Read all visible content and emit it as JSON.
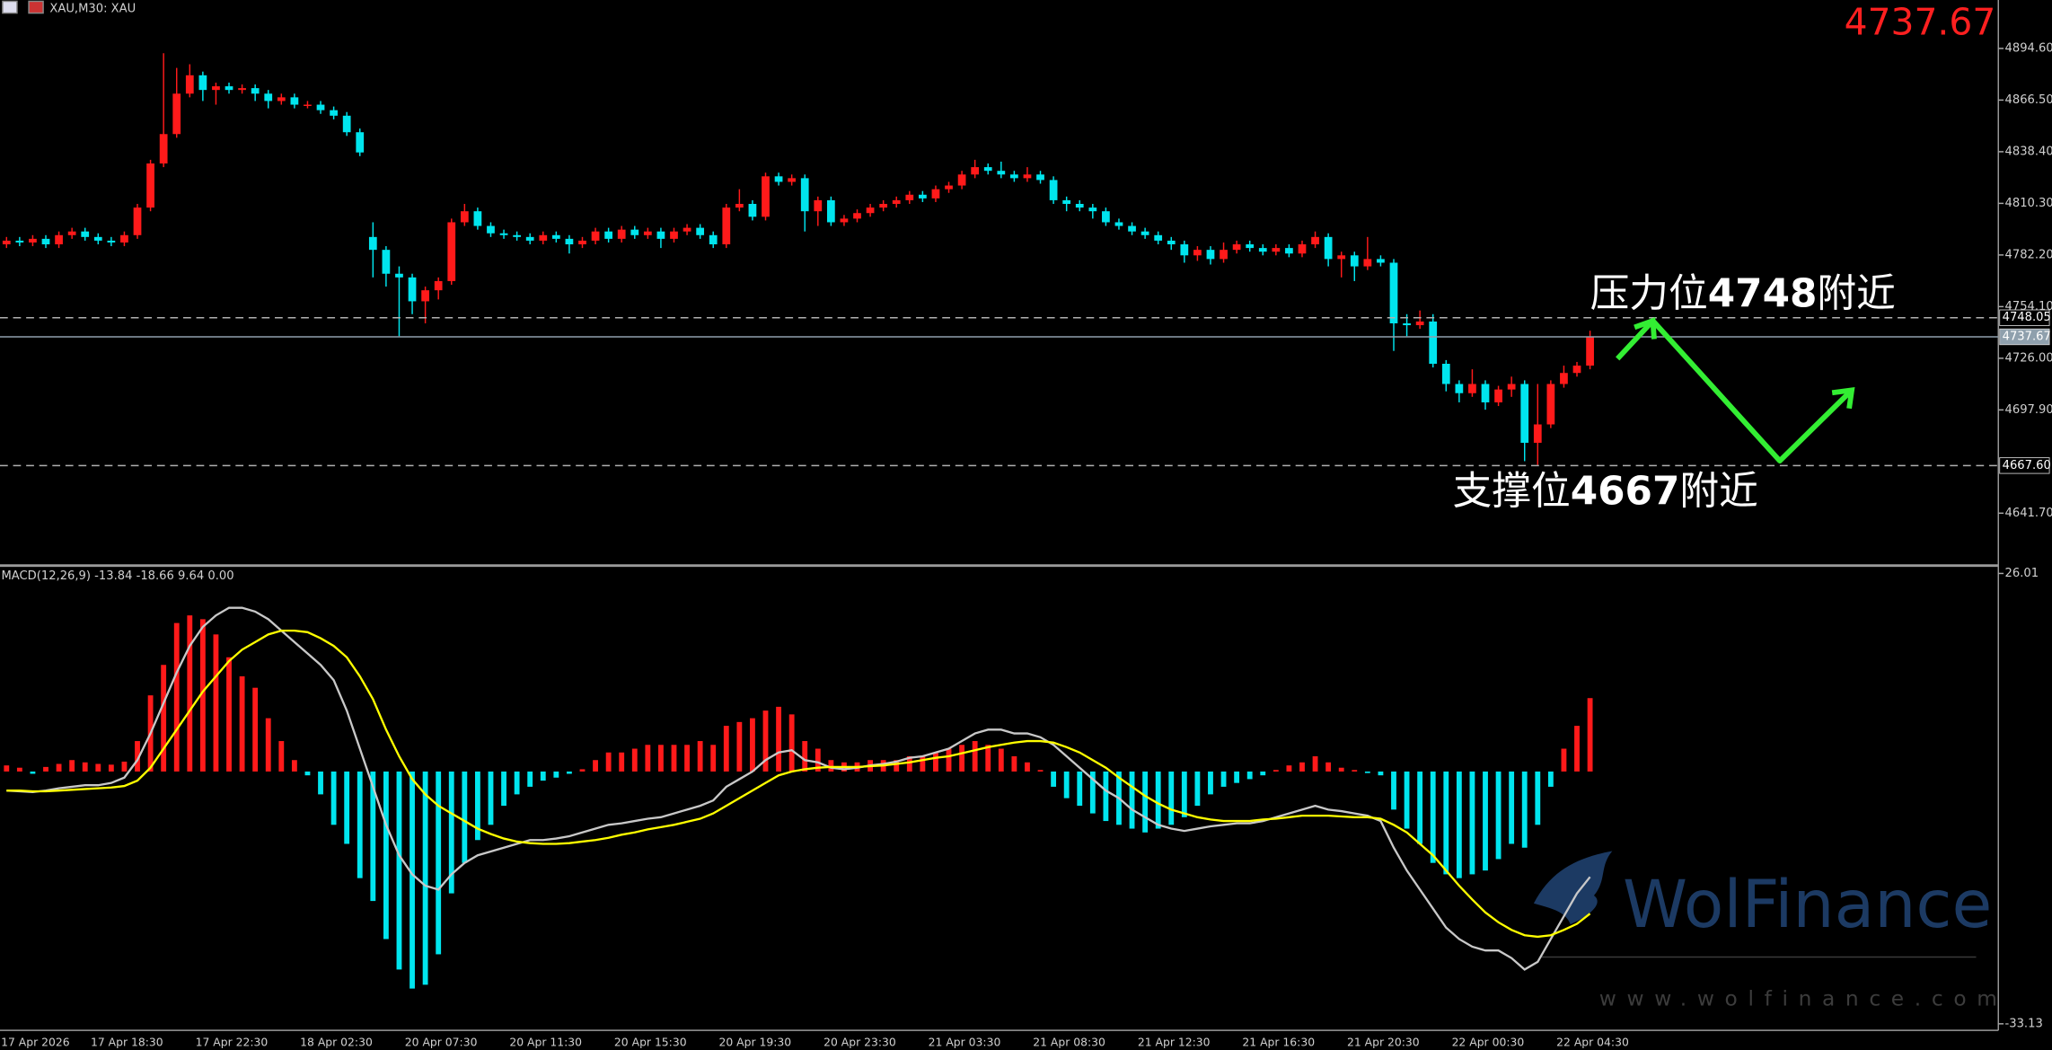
{
  "header": {
    "symbol": "XAU,M30: XAU",
    "price": "4737.67"
  },
  "watermark": {
    "brand": "WolFinance",
    "url": "www.wolfinance.com"
  },
  "chart_data": [
    {
      "type": "candlestick",
      "categories": [
        "17 Apr 2026",
        null,
        null,
        null,
        null,
        null,
        null,
        "17 Apr 18:30",
        null,
        null,
        null,
        null,
        null,
        null,
        null,
        "17 Apr 22:30",
        null,
        null,
        null,
        null,
        null,
        null,
        null,
        "18 Apr 02:30",
        null,
        null,
        null,
        null,
        null,
        null,
        null,
        "20 Apr 07:30",
        null,
        null,
        null,
        null,
        null,
        null,
        null,
        "20 Apr 11:30",
        null,
        null,
        null,
        null,
        null,
        null,
        null,
        "20 Apr 15:30",
        null,
        null,
        null,
        null,
        null,
        null,
        null,
        "20 Apr 19:30",
        null,
        null,
        null,
        null,
        null,
        null,
        null,
        "20 Apr 23:30",
        null,
        null,
        null,
        null,
        null,
        null,
        null,
        "21 Apr 03:30",
        null,
        null,
        null,
        null,
        null,
        null,
        null,
        "21 Apr 08:30",
        null,
        null,
        null,
        null,
        null,
        null,
        null,
        "21 Apr 12:30",
        null,
        null,
        null,
        null,
        null,
        null,
        null,
        "21 Apr 16:30",
        null,
        null,
        null,
        null,
        null,
        null,
        null,
        "21 Apr 20:30",
        null,
        null,
        null,
        null,
        null,
        null,
        null,
        "22 Apr 00:30",
        null,
        null,
        null,
        null,
        null,
        null,
        null,
        "22 Apr 04:30",
        null,
        null
      ],
      "open": [
        4788,
        4790,
        4789,
        4791,
        4788,
        4793,
        4795,
        4792,
        4790,
        4789,
        4793,
        4808,
        4832,
        4848,
        4870,
        4880,
        4872,
        4874,
        4872,
        4873,
        4870,
        4866,
        4868,
        4864,
        4864,
        4861,
        4858,
        4849,
        4792,
        4785,
        4772,
        4770,
        4757,
        4763,
        4768,
        4800,
        4806,
        4798,
        4794,
        4793,
        4792,
        4790,
        4793,
        4791,
        4788,
        4790,
        4795,
        4791,
        4796,
        4793,
        4795,
        4791,
        4795,
        4797,
        4793,
        4788,
        4808,
        4810,
        4803,
        4825,
        4822,
        4824,
        4806,
        4812,
        4800,
        4802,
        4805,
        4808,
        4810,
        4812,
        4815,
        4813,
        4818,
        4820,
        4826,
        4830,
        4828,
        4826,
        4824,
        4826,
        4823,
        4812,
        4810,
        4808,
        4806,
        4800,
        4798,
        4795,
        4793,
        4790,
        4788,
        4782,
        4785,
        4780,
        4785,
        4788,
        4786,
        4784,
        4786,
        4783,
        4788,
        4792,
        4780,
        4782,
        4776,
        4780,
        4778,
        4745,
        4744,
        4746,
        4723,
        4712,
        4707,
        4712,
        4702,
        4709,
        4712,
        4680,
        4690,
        4712,
        4718,
        4722
      ],
      "high": [
        4792,
        4792,
        4793,
        4793,
        4795,
        4797,
        4797,
        4794,
        4792,
        4795,
        4810,
        4834,
        4892,
        4884,
        4886,
        4882,
        4876,
        4876,
        4875,
        4875,
        4872,
        4870,
        4870,
        4866,
        4866,
        4863,
        4860,
        4851,
        4800,
        4787,
        4776,
        4772,
        4765,
        4770,
        4802,
        4810,
        4808,
        4800,
        4796,
        4795,
        4794,
        4795,
        4795,
        4793,
        4792,
        4797,
        4797,
        4798,
        4798,
        4797,
        4797,
        4797,
        4799,
        4799,
        4795,
        4810,
        4818,
        4812,
        4827,
        4827,
        4826,
        4826,
        4814,
        4814,
        4804,
        4807,
        4810,
        4812,
        4814,
        4817,
        4817,
        4820,
        4822,
        4828,
        4834,
        4832,
        4833,
        4828,
        4830,
        4828,
        4825,
        4814,
        4812,
        4810,
        4808,
        4802,
        4800,
        4797,
        4795,
        4792,
        4790,
        4787,
        4787,
        4789,
        4790,
        4790,
        4788,
        4788,
        4788,
        4790,
        4795,
        4794,
        4784,
        4784,
        4792,
        4782,
        4780,
        4750,
        4752,
        4750,
        4725,
        4714,
        4720,
        4714,
        4711,
        4716,
        4714,
        4712,
        4714,
        4722,
        4724,
        4741
      ],
      "low": [
        4786,
        4787,
        4787,
        4786,
        4786,
        4791,
        4790,
        4788,
        4787,
        4787,
        4791,
        4806,
        4830,
        4846,
        4868,
        4866,
        4864,
        4870,
        4870,
        4866,
        4862,
        4864,
        4862,
        4862,
        4859,
        4856,
        4847,
        4836,
        4770,
        4765,
        4738,
        4750,
        4745,
        4758,
        4766,
        4798,
        4796,
        4792,
        4791,
        4790,
        4788,
        4788,
        4789,
        4783,
        4786,
        4788,
        4789,
        4789,
        4791,
        4791,
        4786,
        4789,
        4793,
        4791,
        4786,
        4786,
        4806,
        4801,
        4801,
        4820,
        4820,
        4795,
        4798,
        4798,
        4798,
        4800,
        4803,
        4806,
        4808,
        4810,
        4811,
        4811,
        4816,
        4818,
        4824,
        4826,
        4824,
        4822,
        4822,
        4821,
        4810,
        4806,
        4806,
        4802,
        4798,
        4796,
        4793,
        4791,
        4788,
        4785,
        4778,
        4779,
        4777,
        4778,
        4783,
        4784,
        4782,
        4782,
        4781,
        4781,
        4786,
        4776,
        4770,
        4768,
        4774,
        4776,
        4730,
        4738,
        4742,
        4721,
        4708,
        4702,
        4705,
        4698,
        4700,
        4705,
        4670,
        4668,
        4688,
        4710,
        4716,
        4720
      ],
      "close": [
        4790,
        4789,
        4791,
        4788,
        4793,
        4795,
        4792,
        4790,
        4789,
        4793,
        4808,
        4832,
        4848,
        4870,
        4880,
        4872,
        4874,
        4872,
        4873,
        4870,
        4866,
        4868,
        4864,
        4864,
        4861,
        4858,
        4849,
        4838,
        4785,
        4772,
        4770,
        4757,
        4763,
        4768,
        4800,
        4806,
        4798,
        4794,
        4793,
        4792,
        4790,
        4793,
        4791,
        4788,
        4790,
        4795,
        4791,
        4796,
        4793,
        4795,
        4791,
        4795,
        4797,
        4793,
        4788,
        4808,
        4810,
        4803,
        4825,
        4822,
        4824,
        4806,
        4812,
        4800,
        4802,
        4805,
        4808,
        4810,
        4812,
        4815,
        4813,
        4818,
        4820,
        4826,
        4830,
        4828,
        4826,
        4824,
        4826,
        4823,
        4812,
        4810,
        4808,
        4806,
        4800,
        4798,
        4795,
        4793,
        4790,
        4788,
        4782,
        4785,
        4780,
        4785,
        4788,
        4786,
        4784,
        4786,
        4783,
        4788,
        4792,
        4780,
        4782,
        4776,
        4780,
        4778,
        4745,
        4744,
        4746,
        4723,
        4712,
        4707,
        4712,
        4702,
        4709,
        4712,
        4680,
        4690,
        4712,
        4718,
        4722,
        4737.67
      ],
      "up_color": "#ff1a1a",
      "down_color": "#00e5ee",
      "ylim": [
        4614.6,
        4920.96
      ],
      "yticks": [
        {
          "value": 4894.6,
          "label": "4894.60"
        },
        {
          "value": 4866.5,
          "label": "4866.50"
        },
        {
          "value": 4838.4,
          "label": "4838.40"
        },
        {
          "value": 4810.3,
          "label": "4810.30"
        },
        {
          "value": 4782.2,
          "label": "4782.20"
        },
        {
          "value": 4754.1,
          "label": "4754.10"
        },
        {
          "value": 4726,
          "label": "4726.00"
        },
        {
          "value": 4697.9,
          "label": "4697.90"
        },
        {
          "value": 4641.7,
          "label": "4641.70"
        }
      ],
      "levels": [
        {
          "value": 4748.05,
          "label": "4748.05",
          "style": "dashed"
        },
        {
          "value": 4737.67,
          "label": "4737.67",
          "style": "solid"
        },
        {
          "value": 4667.6,
          "label": "4667.60",
          "style": "dashed"
        }
      ],
      "annotations": [
        {
          "parts": [
            "压力位",
            "4748",
            "附近"
          ]
        },
        {
          "parts": [
            "支撑位",
            "4667",
            "附近"
          ]
        }
      ]
    },
    {
      "type": "macd",
      "title": "MACD(12,26,9) -13.84 -18.66 9.64 0.00",
      "histogram": {
        "up_color": "#ff1a1a",
        "down_color": "#00e5ee",
        "values": [
          0.8,
          0.5,
          -0.3,
          0.6,
          1,
          1.5,
          1.2,
          1,
          0.9,
          1.3,
          4,
          10,
          14,
          19.5,
          20.5,
          20,
          18,
          15,
          12.5,
          11,
          7,
          4,
          1.5,
          -0.5,
          -3,
          -7,
          -9.5,
          -14,
          -17,
          -22,
          -26,
          -28.5,
          -28,
          -24,
          -16,
          -12,
          -9,
          -7,
          -4.5,
          -3,
          -2,
          -1.2,
          -0.8,
          -0.3,
          0.3,
          1.5,
          2.5,
          2.5,
          3,
          3.5,
          3.5,
          3.5,
          3.5,
          4,
          3.5,
          6,
          6.5,
          7,
          8,
          8.5,
          7.5,
          4,
          3,
          1.5,
          1.2,
          1.2,
          1.5,
          1.5,
          1.5,
          2,
          2,
          2.5,
          3,
          3.5,
          4,
          3.5,
          3,
          2,
          1.2,
          0.2,
          -2,
          -3.5,
          -4.5,
          -5.5,
          -6.5,
          -7,
          -7.5,
          -8,
          -7.5,
          -7,
          -6,
          -4.5,
          -3,
          -2,
          -1.5,
          -1,
          -0.5,
          0.2,
          0.8,
          1.2,
          2,
          1.2,
          0.5,
          0.2,
          -0.2,
          -0.5,
          -5,
          -7.5,
          -9.5,
          -12,
          -13.5,
          -14,
          -13.5,
          -13,
          -11.5,
          -9.5,
          -10,
          -7,
          -2,
          3,
          6,
          9.64
        ]
      },
      "series": [
        {
          "color": "#c8c8c8",
          "values": [
            -2.5,
            -2.6,
            -2.7,
            -2.5,
            -2.2,
            -2,
            -1.8,
            -1.8,
            -1.5,
            -0.8,
            1.5,
            5,
            9,
            13,
            16.5,
            19,
            20.5,
            21.5,
            21.5,
            21,
            20,
            18.5,
            17,
            15.5,
            14,
            12,
            8,
            3,
            -2,
            -7,
            -11,
            -13.5,
            -15,
            -15.5,
            -13.5,
            -12,
            -11,
            -10.5,
            -10,
            -9.5,
            -9,
            -9,
            -8.8,
            -8.5,
            -8,
            -7.5,
            -7,
            -6.8,
            -6.5,
            -6.2,
            -6,
            -5.5,
            -5,
            -4.5,
            -3.8,
            -2,
            -1,
            0,
            1.5,
            2.5,
            2.8,
            1.5,
            1.2,
            0.5,
            0.3,
            0.5,
            0.8,
            1,
            1.3,
            1.8,
            2,
            2.5,
            3,
            4,
            5,
            5.5,
            5.5,
            5,
            5,
            4.5,
            3.5,
            2,
            0.5,
            -1,
            -2.5,
            -3.5,
            -5,
            -6,
            -7,
            -7.5,
            -7.8,
            -7.5,
            -7.2,
            -7,
            -6.8,
            -6.8,
            -6.5,
            -6,
            -5.5,
            -5,
            -4.5,
            -5,
            -5.2,
            -5.5,
            -5.8,
            -6.5,
            -10,
            -13,
            -15.5,
            -18,
            -20.5,
            -22,
            -23,
            -23.5,
            -23.5,
            -24.5,
            -26,
            -25,
            -22,
            -19,
            -16,
            -13.84
          ]
        },
        {
          "color": "#ffff00",
          "values": [
            -2.5,
            -2.5,
            -2.6,
            -2.6,
            -2.5,
            -2.4,
            -2.3,
            -2.2,
            -2.1,
            -1.9,
            -1.2,
            0.5,
            3,
            5.5,
            8,
            10.5,
            12.5,
            14.5,
            16,
            17,
            18,
            18.5,
            18.5,
            18.3,
            17.5,
            16.5,
            15,
            12.5,
            9.5,
            5.5,
            2,
            -1,
            -3,
            -4.5,
            -5.5,
            -6.5,
            -7.5,
            -8.2,
            -8.8,
            -9.2,
            -9.4,
            -9.5,
            -9.5,
            -9.4,
            -9.2,
            -9,
            -8.7,
            -8.3,
            -8,
            -7.6,
            -7.3,
            -7,
            -6.6,
            -6.2,
            -5.5,
            -4.5,
            -3.5,
            -2.5,
            -1.5,
            -0.5,
            0,
            0.3,
            0.5,
            0.6,
            0.6,
            0.6,
            0.7,
            0.8,
            1,
            1.2,
            1.5,
            1.8,
            2,
            2.4,
            2.8,
            3.2,
            3.5,
            3.8,
            4,
            4,
            3.8,
            3.2,
            2.5,
            1.5,
            0.5,
            -0.8,
            -2,
            -3.2,
            -4.2,
            -5,
            -5.5,
            -6,
            -6.3,
            -6.5,
            -6.5,
            -6.5,
            -6.3,
            -6.2,
            -6,
            -5.8,
            -5.8,
            -5.8,
            -5.9,
            -6,
            -6,
            -6.2,
            -7,
            -8,
            -9.5,
            -11,
            -13,
            -15,
            -16.8,
            -18.5,
            -19.8,
            -20.8,
            -21.5,
            -21.7,
            -21.5,
            -20.8,
            -20,
            -18.66
          ]
        }
      ],
      "ylim": [
        -33.13,
        26.01
      ],
      "yticks": [
        26.01,
        -33.13
      ]
    }
  ]
}
